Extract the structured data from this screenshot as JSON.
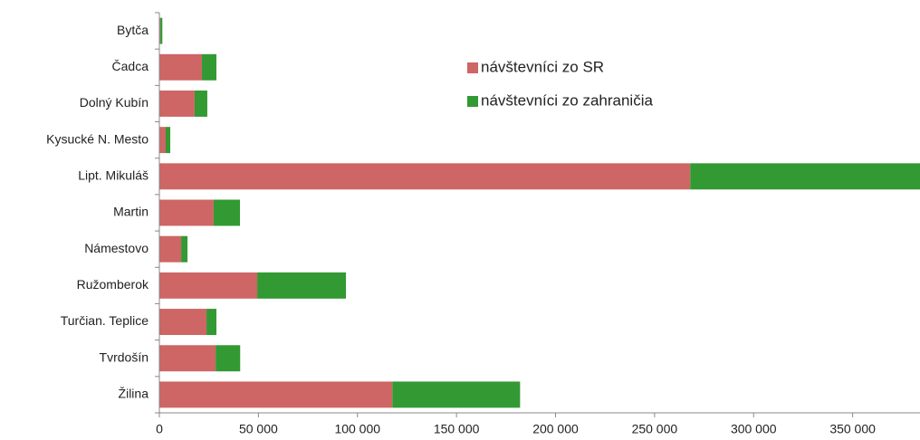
{
  "chart_data": {
    "type": "stacked_barh",
    "categories": [
      "Bytča",
      "Čadca",
      "Dolný Kubín",
      "Kysucké N. Mesto",
      "Lipt. Mikuláš",
      "Martin",
      "Námestovo",
      "Ružomberok",
      "Turčian. Teplice",
      "Tvrdošín",
      "Žilina"
    ],
    "series": [
      {
        "name": "návštevníci zo SR",
        "color": "#cd6664",
        "values": [
          500,
          21500,
          17800,
          3200,
          268000,
          27400,
          11000,
          49400,
          23800,
          28400,
          117600
        ]
      },
      {
        "name": "návštevníci zo zahraničia",
        "color": "#339933",
        "values": [
          1000,
          7300,
          6400,
          2300,
          116000,
          13300,
          3200,
          44800,
          5000,
          12400,
          64500
        ]
      }
    ],
    "xlim": [
      0,
      384000
    ],
    "xticks": [
      0,
      {
        "value": 50000,
        "label": "50 000"
      },
      {
        "value": 100000,
        "label": "100 000"
      },
      {
        "value": 150000,
        "label": "150 000"
      },
      {
        "value": 200000,
        "label": "200 000"
      },
      {
        "value": 250000,
        "label": "250 000"
      },
      {
        "value": 300000,
        "label": "300 000"
      },
      {
        "value": 350000,
        "label": "350 000"
      }
    ],
    "legend": "upper-center"
  }
}
